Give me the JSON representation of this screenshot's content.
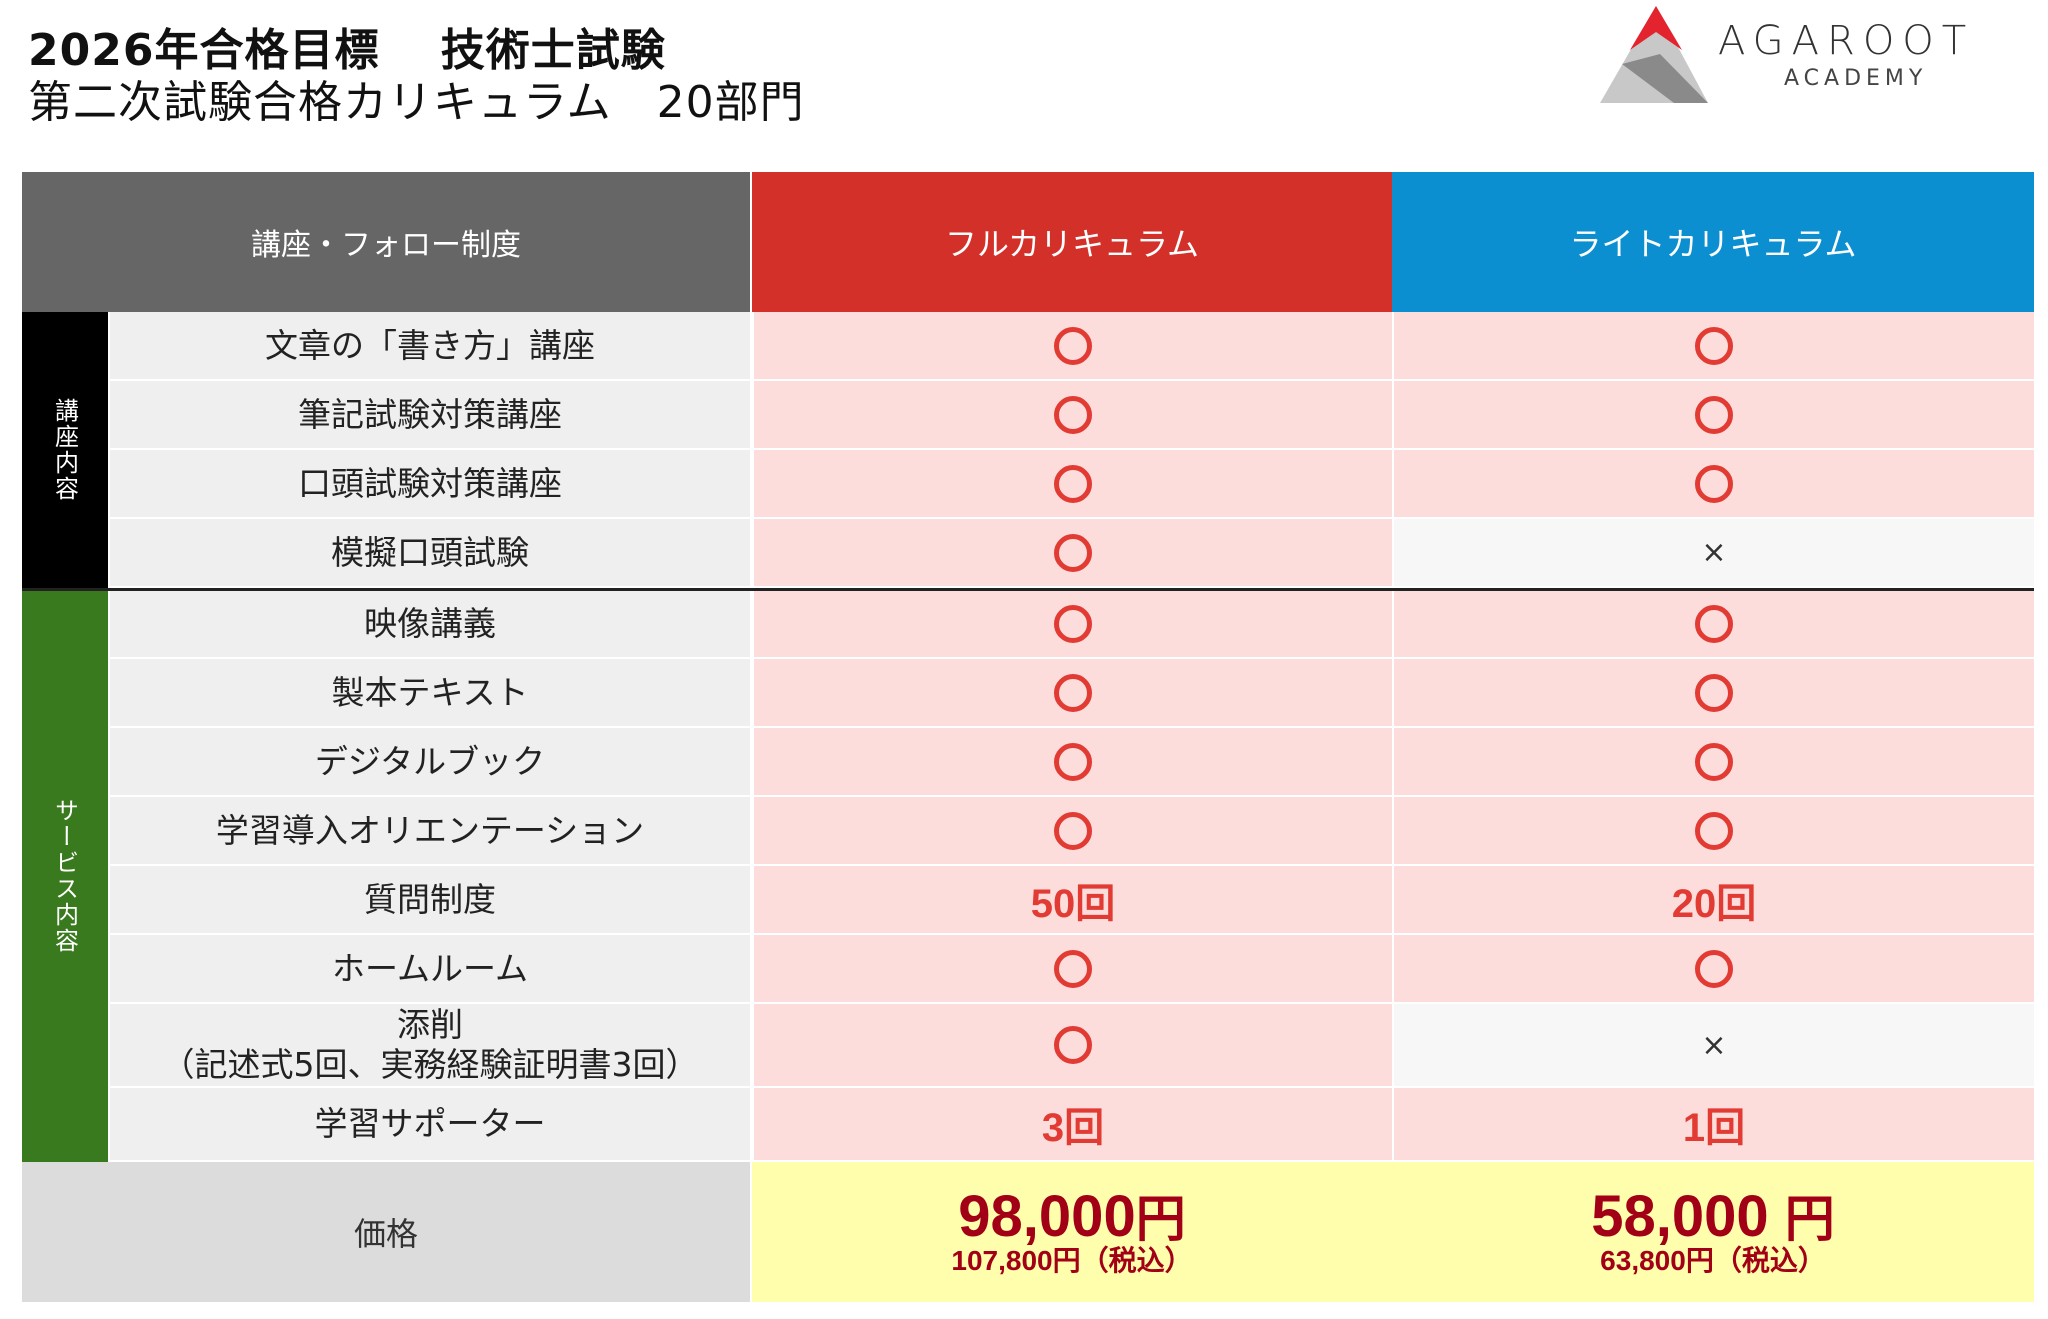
{
  "header": {
    "title_line1": "2026年合格目標　 技術士試験",
    "title_line2": "第二次試験合格カリキュラム　20部門"
  },
  "logo": {
    "name": "AGAROOT",
    "sub": "ACADEMY",
    "colors": {
      "red": "#e3232d",
      "grey": "#8a8a8a",
      "light_grey": "#c8c8c8"
    }
  },
  "table": {
    "col_headers": {
      "features": "講座・フォロー制度",
      "full": "フルカリキュラム",
      "lite": "ライトカリキュラム"
    },
    "categories": {
      "course": "講座内容",
      "service": "サービス内容"
    },
    "rows": [
      {
        "feature": "文章の「書き方」講座",
        "full": "○",
        "lite": "○"
      },
      {
        "feature": "筆記試験対策講座",
        "full": "○",
        "lite": "○"
      },
      {
        "feature": "口頭試験対策講座",
        "full": "○",
        "lite": "○"
      },
      {
        "feature": "模擬口頭試験",
        "full": "○",
        "lite": "×"
      },
      {
        "feature": "映像講義",
        "full": "○",
        "lite": "○"
      },
      {
        "feature": "製本テキスト",
        "full": "○",
        "lite": "○"
      },
      {
        "feature": "デジタルブック",
        "full": "○",
        "lite": "○"
      },
      {
        "feature": "学習導入オリエンテーション",
        "full": "○",
        "lite": "○"
      },
      {
        "feature": "質問制度",
        "full": "50回",
        "lite": "20回"
      },
      {
        "feature": "ホームルーム",
        "full": "○",
        "lite": "○"
      },
      {
        "feature": "添削",
        "feature_sub": "（記述式5回、実務経験証明書3回）",
        "full": "○",
        "lite": "×"
      },
      {
        "feature": "学習サポーター",
        "full": "3回",
        "lite": "1回"
      }
    ],
    "price": {
      "label": "価格",
      "full_amount": "98,000",
      "full_unit": "円",
      "full_tax": "107,800円（税込）",
      "lite_amount": "58,000",
      "lite_unit": "円",
      "lite_tax": "63,800円（税込）"
    },
    "colors": {
      "header_grey": "#666666",
      "header_red": "#d3302a",
      "header_blue": "#0b8fd0",
      "category_black": "#000000",
      "category_green": "#397a1e",
      "cell_pink": "#fcdddb",
      "price_yellow": "#fefead",
      "mark_red": "#e23b34",
      "price_red": "#a10016"
    }
  }
}
